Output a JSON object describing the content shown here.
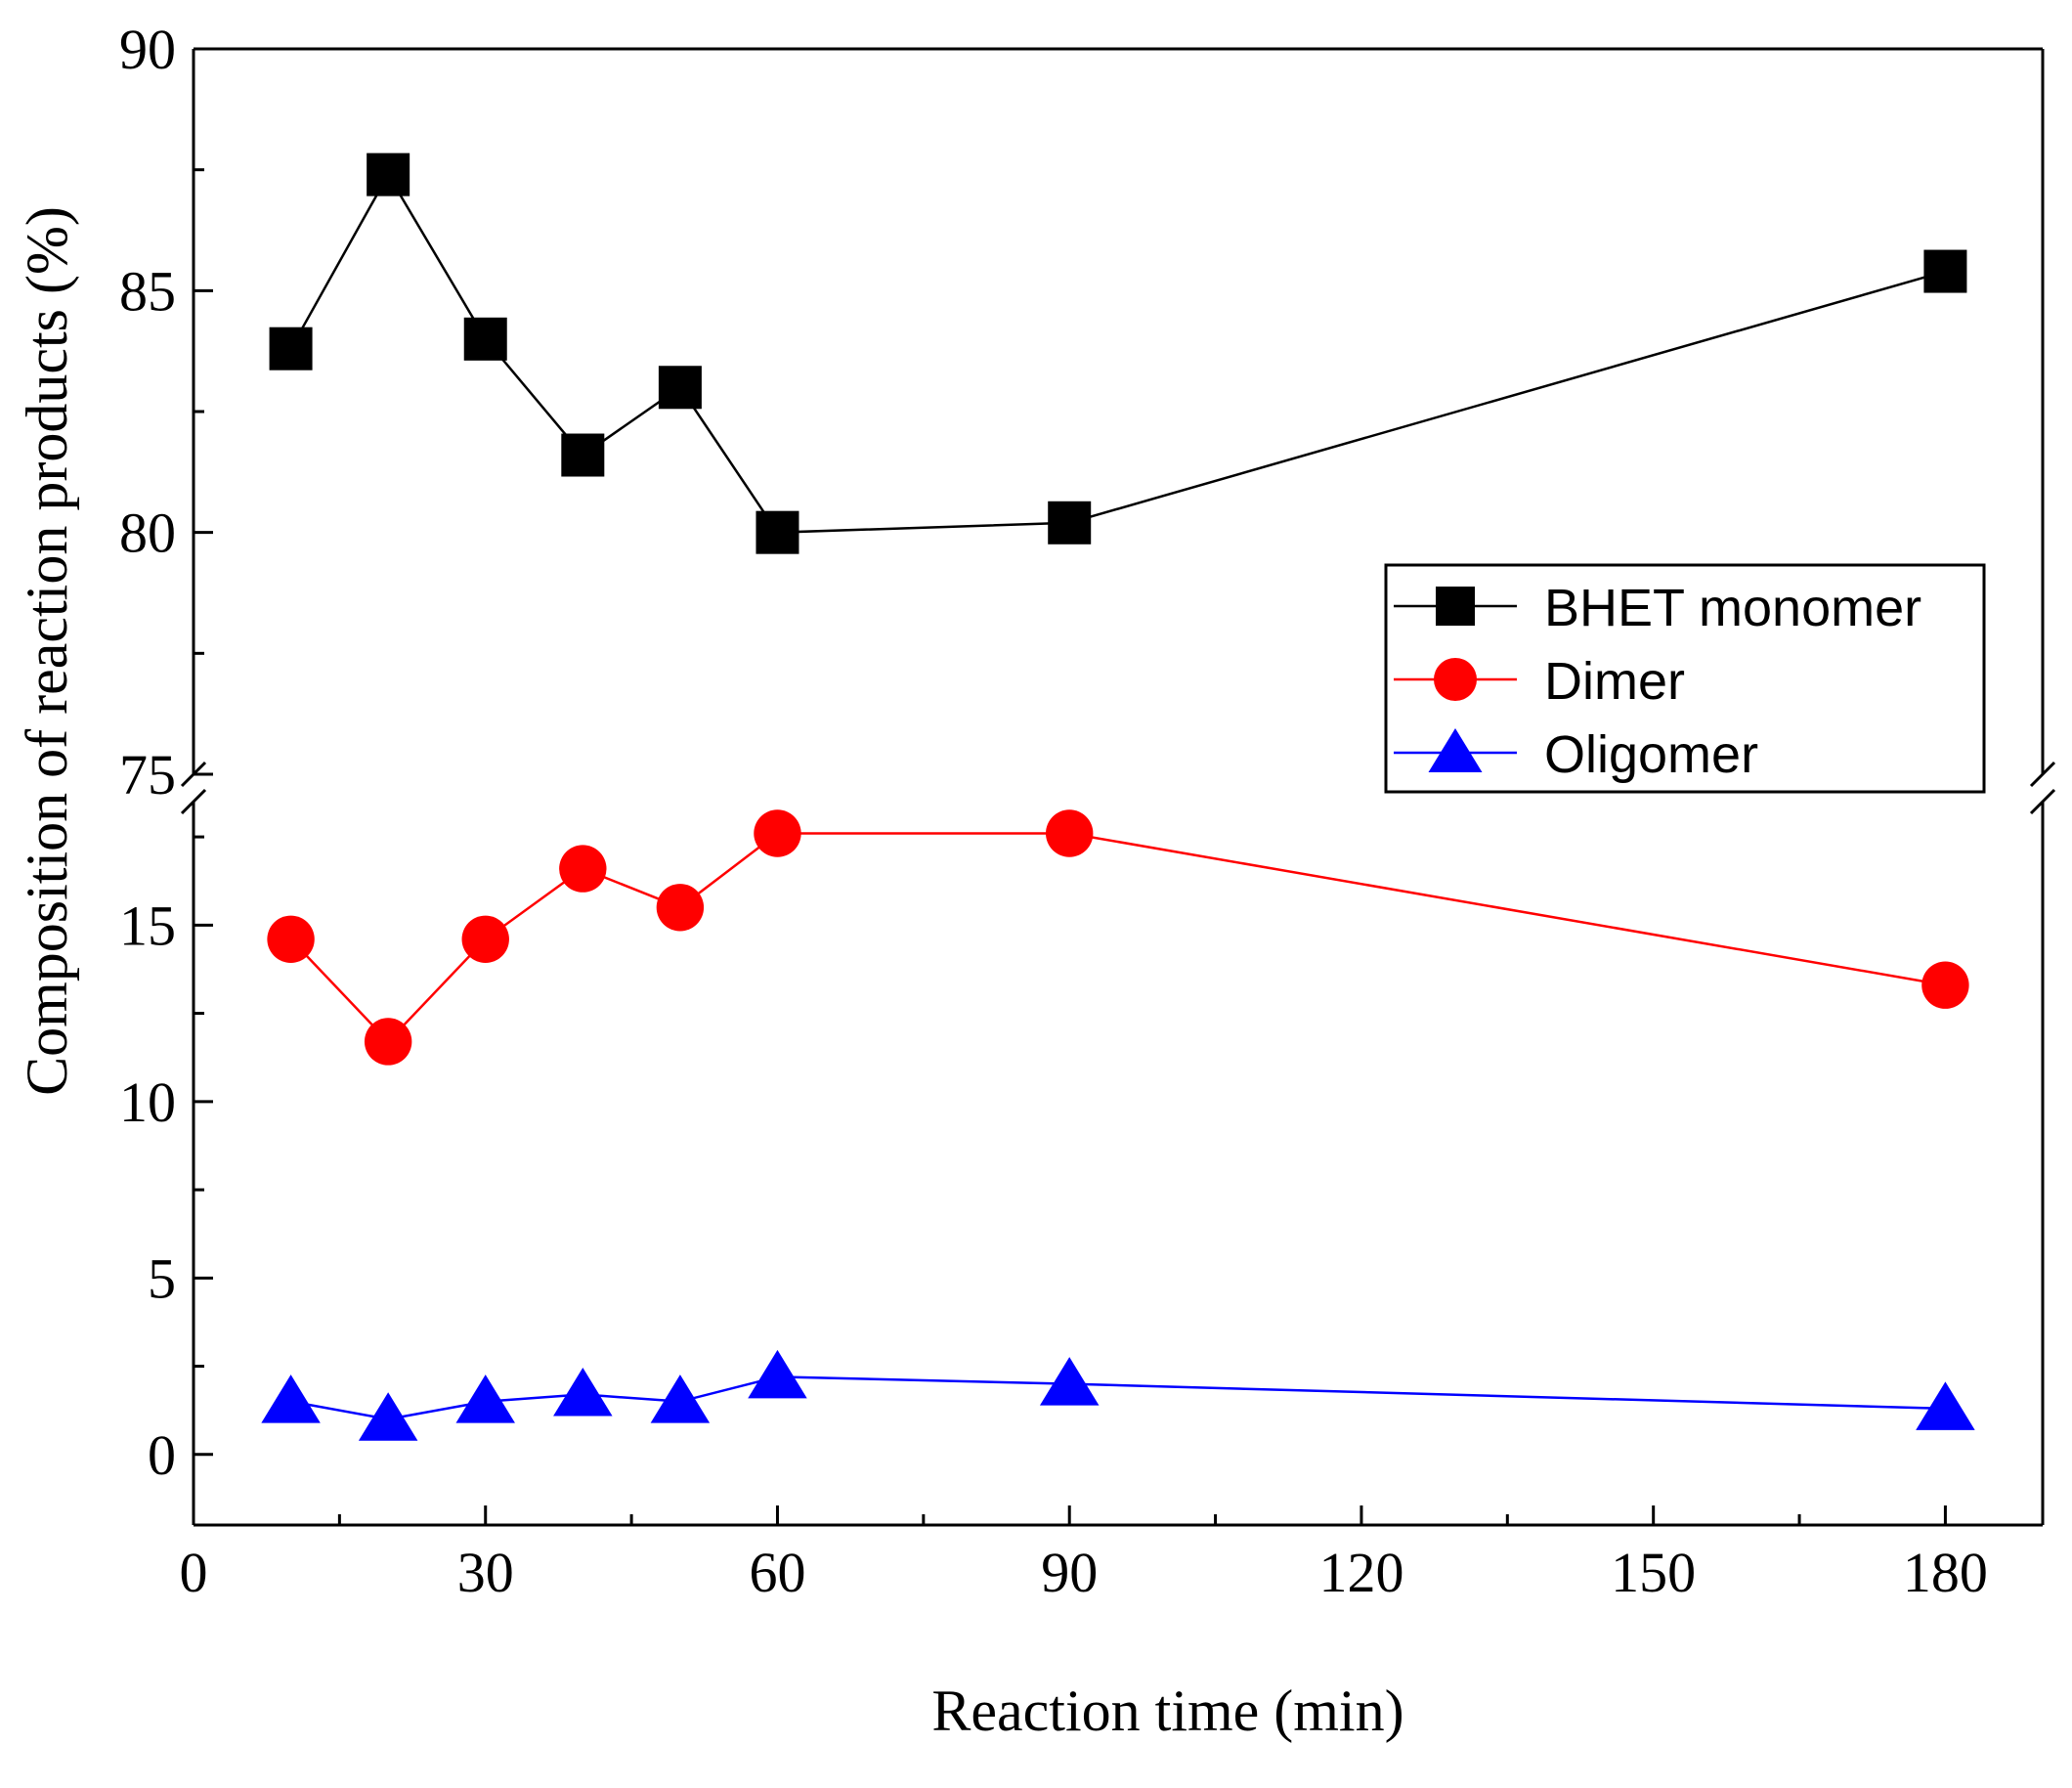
{
  "chart_data": {
    "type": "line",
    "title": "",
    "xlabel": "Reaction time (min)",
    "ylabel": "Composition of reaction products (%)",
    "xlim": [
      0,
      190
    ],
    "x_ticks": [
      0,
      30,
      60,
      90,
      120,
      150,
      180
    ],
    "y_axis_break": true,
    "ylim_upper": [
      75,
      90
    ],
    "y_ticks_upper": [
      75,
      80,
      85,
      90
    ],
    "ylim_lower": [
      -2,
      18.5
    ],
    "y_ticks_lower": [
      0,
      5,
      10,
      15
    ],
    "legend_placement": "right",
    "grid": false,
    "x": [
      10,
      20,
      30,
      40,
      50,
      60,
      90,
      180
    ],
    "series": [
      {
        "name": "BHET monomer",
        "color": "#000000",
        "marker": "square",
        "values": [
          83.8,
          87.4,
          84.0,
          81.6,
          83.0,
          80.0,
          80.2,
          85.4
        ]
      },
      {
        "name": "Dimer",
        "color": "#ff0000",
        "marker": "circle",
        "values": [
          14.6,
          11.7,
          14.6,
          16.6,
          15.5,
          17.6,
          17.6,
          13.3
        ]
      },
      {
        "name": "Oligomer",
        "color": "#0000ff",
        "marker": "triangle",
        "values": [
          1.5,
          1.0,
          1.5,
          1.7,
          1.5,
          2.2,
          2.0,
          1.3
        ]
      }
    ]
  }
}
